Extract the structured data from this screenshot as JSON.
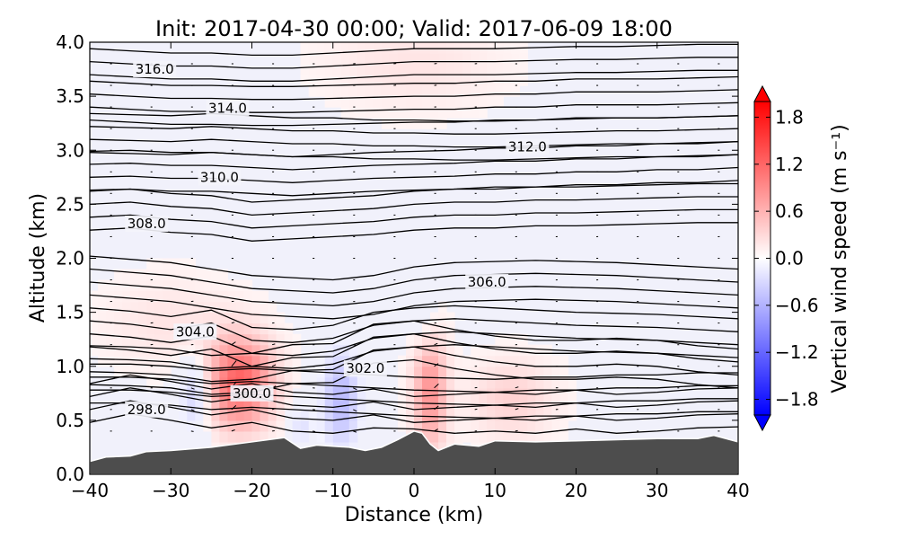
{
  "chart_data": {
    "type": "heatmap",
    "title": "Init: 2017-04-30 00:00; Valid: 2017-06-09 18:00",
    "xlabel": "Distance (km)",
    "ylabel": "Altitude (km)",
    "xlim": [
      -40,
      40
    ],
    "ylim": [
      0.0,
      4.0
    ],
    "x_ticks": [
      "−40",
      "−30",
      "−20",
      "−10",
      "0",
      "10",
      "20",
      "30",
      "40"
    ],
    "x_tick_values": [
      -40,
      -30,
      -20,
      -10,
      0,
      10,
      20,
      30,
      40
    ],
    "y_ticks": [
      "0.0",
      "0.5",
      "1.0",
      "1.5",
      "2.0",
      "2.5",
      "3.0",
      "3.5",
      "4.0"
    ],
    "y_tick_values": [
      0.0,
      0.5,
      1.0,
      1.5,
      2.0,
      2.5,
      3.0,
      3.5,
      4.0
    ],
    "colorbar": {
      "label": "Vertical wind speed (m s⁻¹)",
      "range": [
        -2.0,
        2.0
      ],
      "ticks": [
        "1.8",
        "1.2",
        "0.6",
        "0.0",
        "−0.6",
        "−1.2",
        "−1.8"
      ],
      "tick_values": [
        1.8,
        1.2,
        0.6,
        0.0,
        -0.6,
        -1.2,
        -1.8
      ],
      "low_color": "#0000ff",
      "mid_color": "#ffffff",
      "high_color": "#ff0000"
    },
    "terrain": {
      "color": "#4d4d4d",
      "x": [
        -40,
        -38,
        -35,
        -33,
        -30,
        -25,
        -20,
        -16,
        -14,
        -12,
        -10,
        -8,
        -6,
        -4,
        -2,
        0,
        1,
        2,
        3,
        5,
        8,
        10,
        15,
        20,
        25,
        30,
        35,
        37,
        40
      ],
      "height": [
        0.12,
        0.16,
        0.17,
        0.21,
        0.22,
        0.25,
        0.3,
        0.34,
        0.24,
        0.27,
        0.26,
        0.25,
        0.22,
        0.25,
        0.32,
        0.4,
        0.38,
        0.28,
        0.22,
        0.28,
        0.26,
        0.31,
        0.3,
        0.31,
        0.32,
        0.33,
        0.33,
        0.36,
        0.3
      ]
    },
    "updraft_regions": [
      {
        "x": -21.5,
        "z": 0.85,
        "rx": 4,
        "rz": 0.4,
        "w": 1.2
      },
      {
        "x": 2,
        "z": 0.75,
        "rx": 2,
        "rz": 0.5,
        "w": 0.8
      },
      {
        "x": 12,
        "z": 0.7,
        "rx": 5,
        "rz": 0.35,
        "w": 0.3
      },
      {
        "x": -30,
        "z": 1.4,
        "rx": 8,
        "rz": 0.4,
        "w": 0.15
      },
      {
        "x": 0,
        "z": 3.8,
        "rx": 10,
        "rz": 0.4,
        "w": 0.15
      }
    ],
    "downdraft_regions": [
      {
        "x": -27,
        "z": 0.75,
        "rx": 2,
        "rz": 0.35,
        "w": -0.5
      },
      {
        "x": -9,
        "z": 0.7,
        "rx": 2.5,
        "rz": 0.5,
        "w": -0.6
      },
      {
        "x": -14,
        "z": 0.45,
        "rx": 1.5,
        "rz": 0.2,
        "w": -0.3
      },
      {
        "x": 1,
        "z": 1.5,
        "rx": 1.5,
        "rz": 0.3,
        "w": -0.2
      }
    ],
    "contour_lines": [
      {
        "theta": 298.0,
        "z": [
          0.6,
          0.68,
          0.62,
          0.55,
          0.6,
          0.52,
          0.5,
          0.55,
          0.48,
          0.5,
          0.52,
          0.5,
          0.54,
          0.5,
          0.52,
          0.55,
          0.56
        ]
      },
      {
        "theta": 300.0,
        "z": [
          0.78,
          0.78,
          0.76,
          0.72,
          0.74,
          0.72,
          0.7,
          0.68,
          0.66,
          0.65,
          0.64,
          0.66,
          0.66,
          0.68,
          0.68,
          0.7,
          0.7
        ]
      },
      {
        "theta": 302.0,
        "z": [
          0.95,
          0.94,
          0.92,
          0.86,
          0.88,
          0.96,
          0.97,
          1.15,
          1.18,
          1.1,
          1.04,
          1.0,
          1.0,
          1.02,
          1.0,
          0.95,
          0.92
        ]
      },
      {
        "theta": 304.0,
        "z": [
          1.3,
          1.27,
          1.22,
          1.28,
          1.12,
          1.1,
          1.14,
          1.26,
          1.3,
          1.32,
          1.3,
          1.28,
          1.26,
          1.25,
          1.24,
          1.22,
          1.2
        ]
      },
      {
        "theta": 306.0,
        "z": [
          1.78,
          1.75,
          1.72,
          1.66,
          1.6,
          1.58,
          1.56,
          1.6,
          1.68,
          1.72,
          1.73,
          1.74,
          1.73,
          1.72,
          1.7,
          1.68,
          1.66
        ]
      },
      {
        "theta": 308.0,
        "z": [
          2.38,
          2.4,
          2.36,
          2.34,
          2.28,
          2.3,
          2.32,
          2.34,
          2.38,
          2.4,
          2.4,
          2.42,
          2.42,
          2.43,
          2.44,
          2.45,
          2.45
        ]
      },
      {
        "theta": 310.0,
        "z": [
          2.75,
          2.76,
          2.74,
          2.74,
          2.72,
          2.7,
          2.72,
          2.74,
          2.75,
          2.76,
          2.78,
          2.78,
          2.8,
          2.8,
          2.82,
          2.82,
          2.84
        ]
      },
      {
        "theta": 312.0,
        "z": [
          3.1,
          3.09,
          3.08,
          3.1,
          3.08,
          3.06,
          3.06,
          3.04,
          3.04,
          3.03,
          3.03,
          3.04,
          3.05,
          3.06,
          3.06,
          3.07,
          3.08
        ]
      },
      {
        "theta": 314.0,
        "z": [
          3.4,
          3.38,
          3.36,
          3.36,
          3.35,
          3.35,
          3.36,
          3.37,
          3.38,
          3.38,
          3.4,
          3.4,
          3.42,
          3.42,
          3.42,
          3.43,
          3.44
        ]
      },
      {
        "theta": 316.0,
        "z": [
          3.82,
          3.8,
          3.78,
          3.78,
          3.76,
          3.76,
          3.78,
          3.8,
          3.82,
          3.82,
          3.82,
          3.83,
          3.84,
          3.84,
          3.85,
          3.86,
          3.86
        ]
      }
    ],
    "extra_isentropes_z_offsets": [
      -0.12,
      0.12,
      0.24
    ],
    "contour_labels": [
      {
        "text": "316.0",
        "x": -32,
        "z": 3.75
      },
      {
        "text": "314.0",
        "x": -23,
        "z": 3.39
      },
      {
        "text": "312.0",
        "x": 14,
        "z": 3.03
      },
      {
        "text": "310.0",
        "x": -24,
        "z": 2.75
      },
      {
        "text": "308.0",
        "x": -33,
        "z": 2.32
      },
      {
        "text": "306.0",
        "x": 9,
        "z": 1.78
      },
      {
        "text": "304.0",
        "x": -27,
        "z": 1.32
      },
      {
        "text": "302.0",
        "x": -6,
        "z": 0.98
      },
      {
        "text": "300.0",
        "x": -20,
        "z": 0.75
      },
      {
        "text": "298.0",
        "x": -33,
        "z": 0.6
      }
    ]
  }
}
